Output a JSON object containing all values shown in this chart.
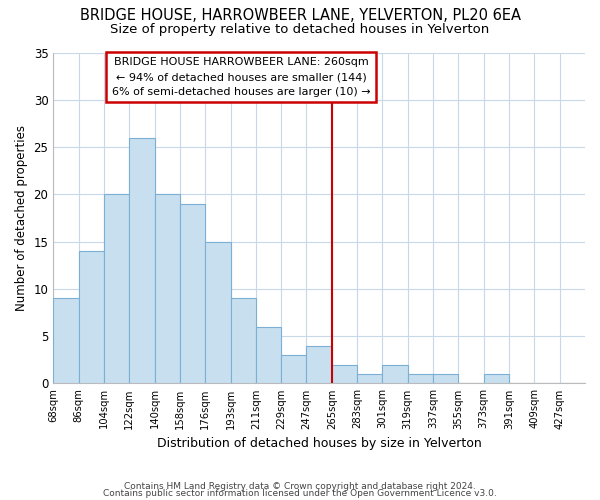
{
  "title": "BRIDGE HOUSE, HARROWBEER LANE, YELVERTON, PL20 6EA",
  "subtitle": "Size of property relative to detached houses in Yelverton",
  "xlabel": "Distribution of detached houses by size in Yelverton",
  "ylabel": "Number of detached properties",
  "footer1": "Contains HM Land Registry data © Crown copyright and database right 2024.",
  "footer2": "Contains public sector information licensed under the Open Government Licence v3.0.",
  "bar_labels": [
    "68sqm",
    "86sqm",
    "104sqm",
    "122sqm",
    "140sqm",
    "158sqm",
    "176sqm",
    "193sqm",
    "211sqm",
    "229sqm",
    "247sqm",
    "265sqm",
    "283sqm",
    "301sqm",
    "319sqm",
    "337sqm",
    "355sqm",
    "373sqm",
    "391sqm",
    "409sqm",
    "427sqm"
  ],
  "bar_heights": [
    9,
    14,
    20,
    26,
    20,
    19,
    15,
    9,
    6,
    3,
    4,
    2,
    1,
    2,
    1,
    1,
    0,
    1,
    0,
    0,
    0
  ],
  "bar_color": "#c8dff0",
  "bar_edge_color": "#7bafd4",
  "marker_label_line1": "BRIDGE HOUSE HARROWBEER LANE: 260sqm",
  "marker_label_line2": "← 94% of detached houses are smaller (144)",
  "marker_label_line3": "6% of semi-detached houses are larger (10) →",
  "marker_color": "#cc0000",
  "ylim": [
    0,
    35
  ],
  "yticks": [
    0,
    5,
    10,
    15,
    20,
    25,
    30,
    35
  ],
  "grid_color": "#c8d8e8",
  "title_fontsize": 10.5,
  "subtitle_fontsize": 9.5
}
